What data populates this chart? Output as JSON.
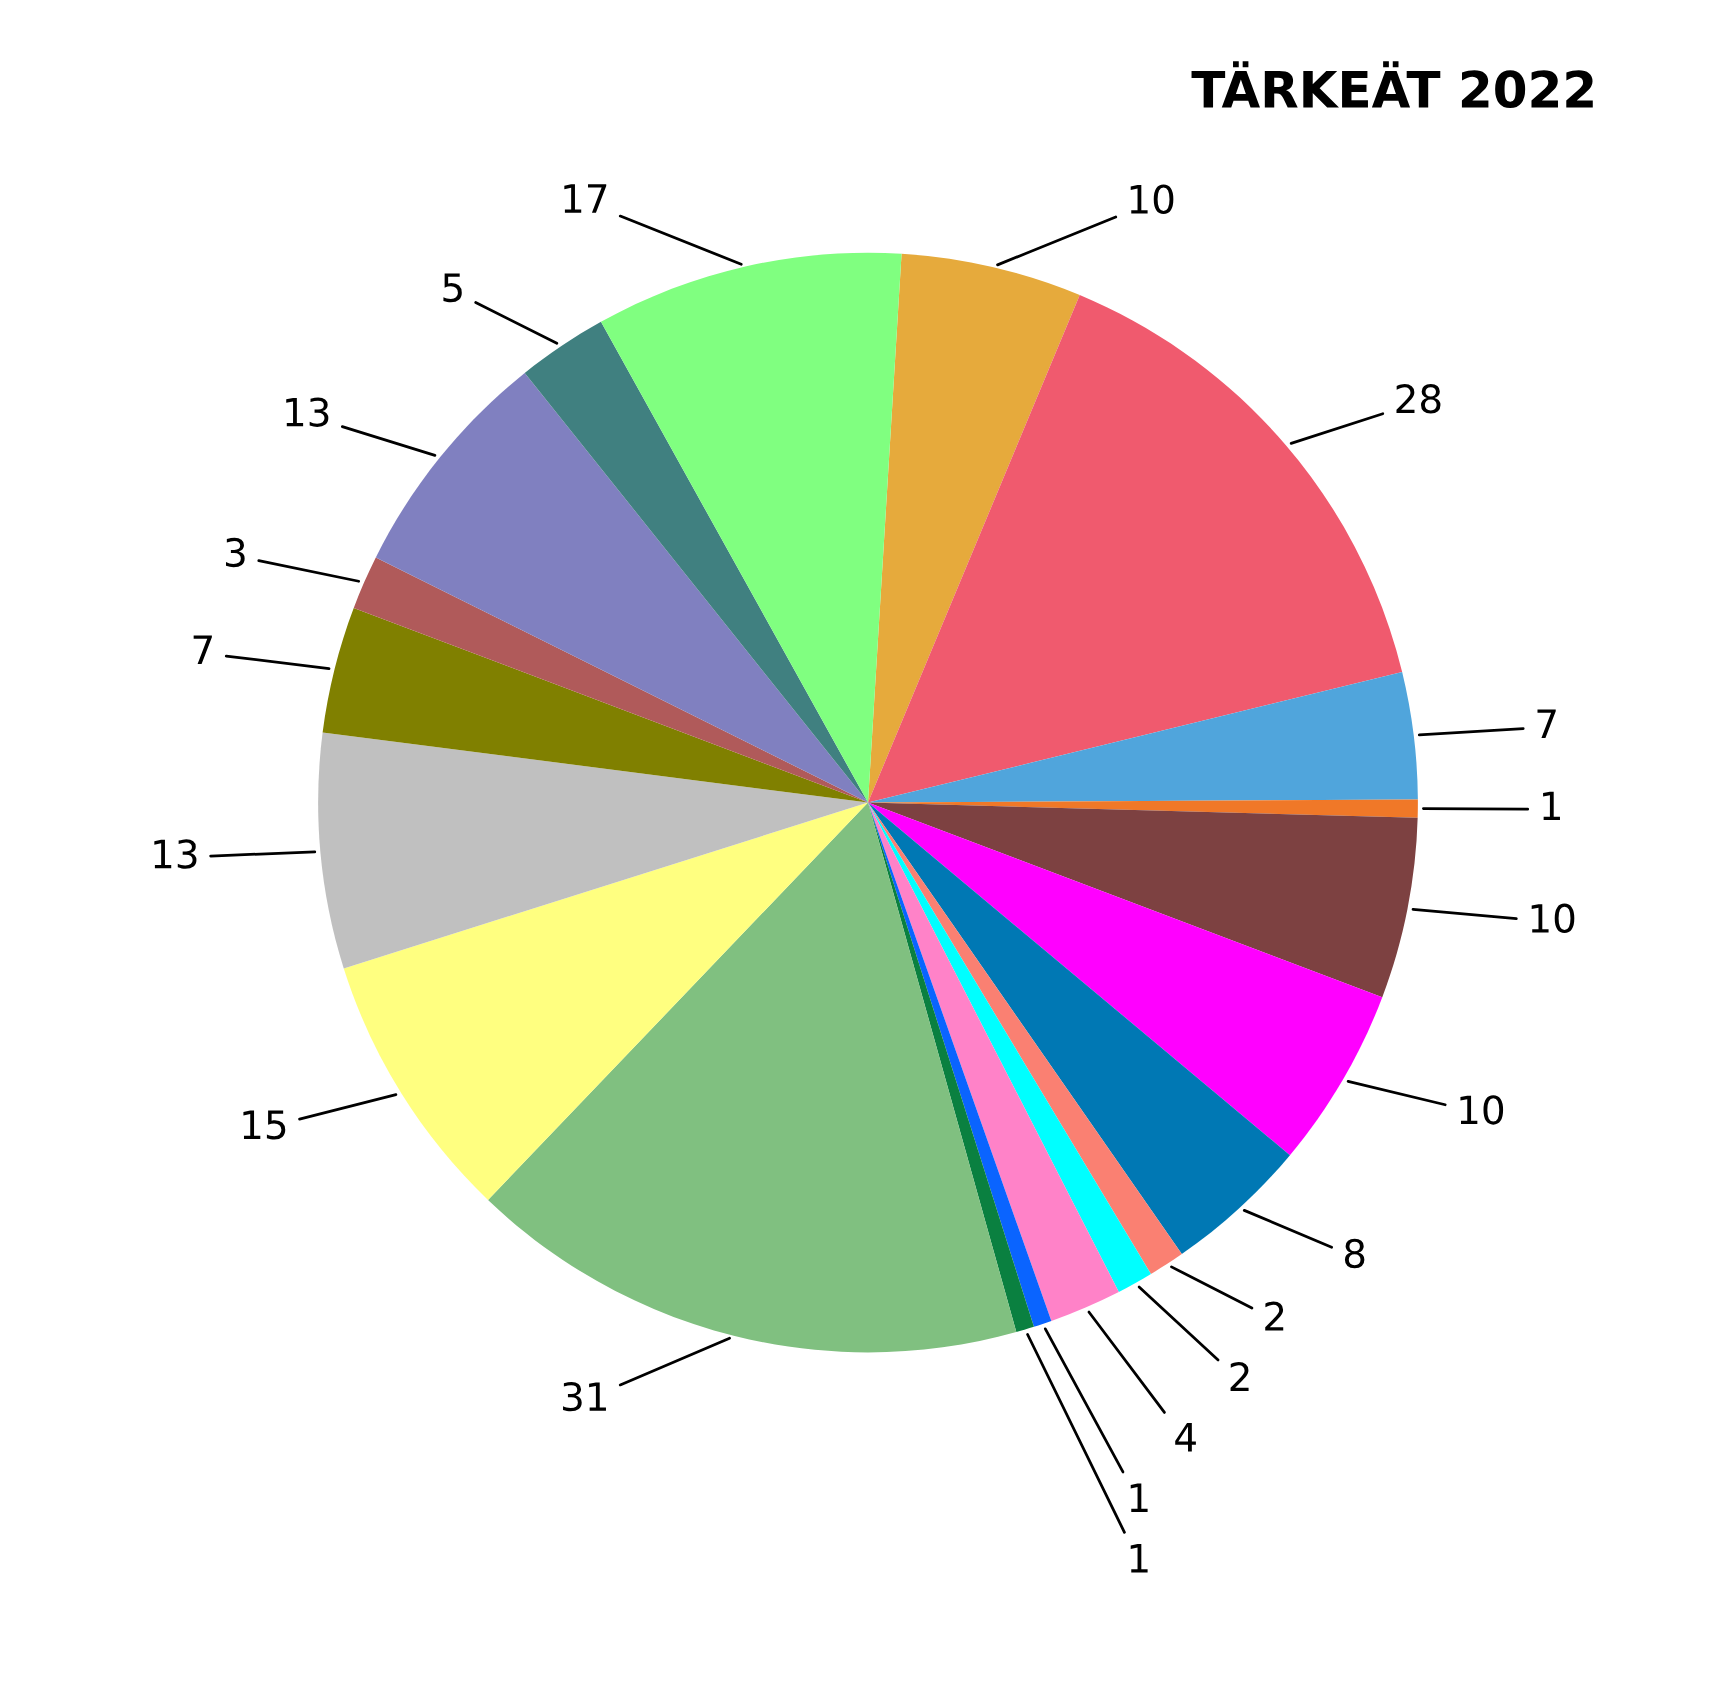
{
  "chart_data": {
    "type": "pie",
    "title": "TÄRKEÄT 2022",
    "data_labels": true,
    "categories": [
      null,
      null,
      null,
      null,
      null,
      null,
      null,
      null,
      null,
      null,
      null,
      null,
      null,
      null,
      null,
      null,
      null,
      null,
      null,
      null
    ],
    "values": [
      10,
      28,
      7,
      1,
      10,
      10,
      8,
      2,
      2,
      4,
      1,
      1,
      31,
      15,
      13,
      7,
      3,
      13,
      5,
      17
    ],
    "colors": [
      "#e6aa3c",
      "#f05a6e",
      "#50a5dc",
      "#f07828",
      "#7d4141",
      "#ff00ff",
      "#0078b4",
      "#fa8072",
      "#00ffff",
      "#ff82c8",
      "#0a64ff",
      "#0a8040",
      "#80c080",
      "#ffff80",
      "#c0c0c0",
      "#808000",
      "#b05a5a",
      "#8080c0",
      "#408080",
      "#80ff80"
    ]
  }
}
